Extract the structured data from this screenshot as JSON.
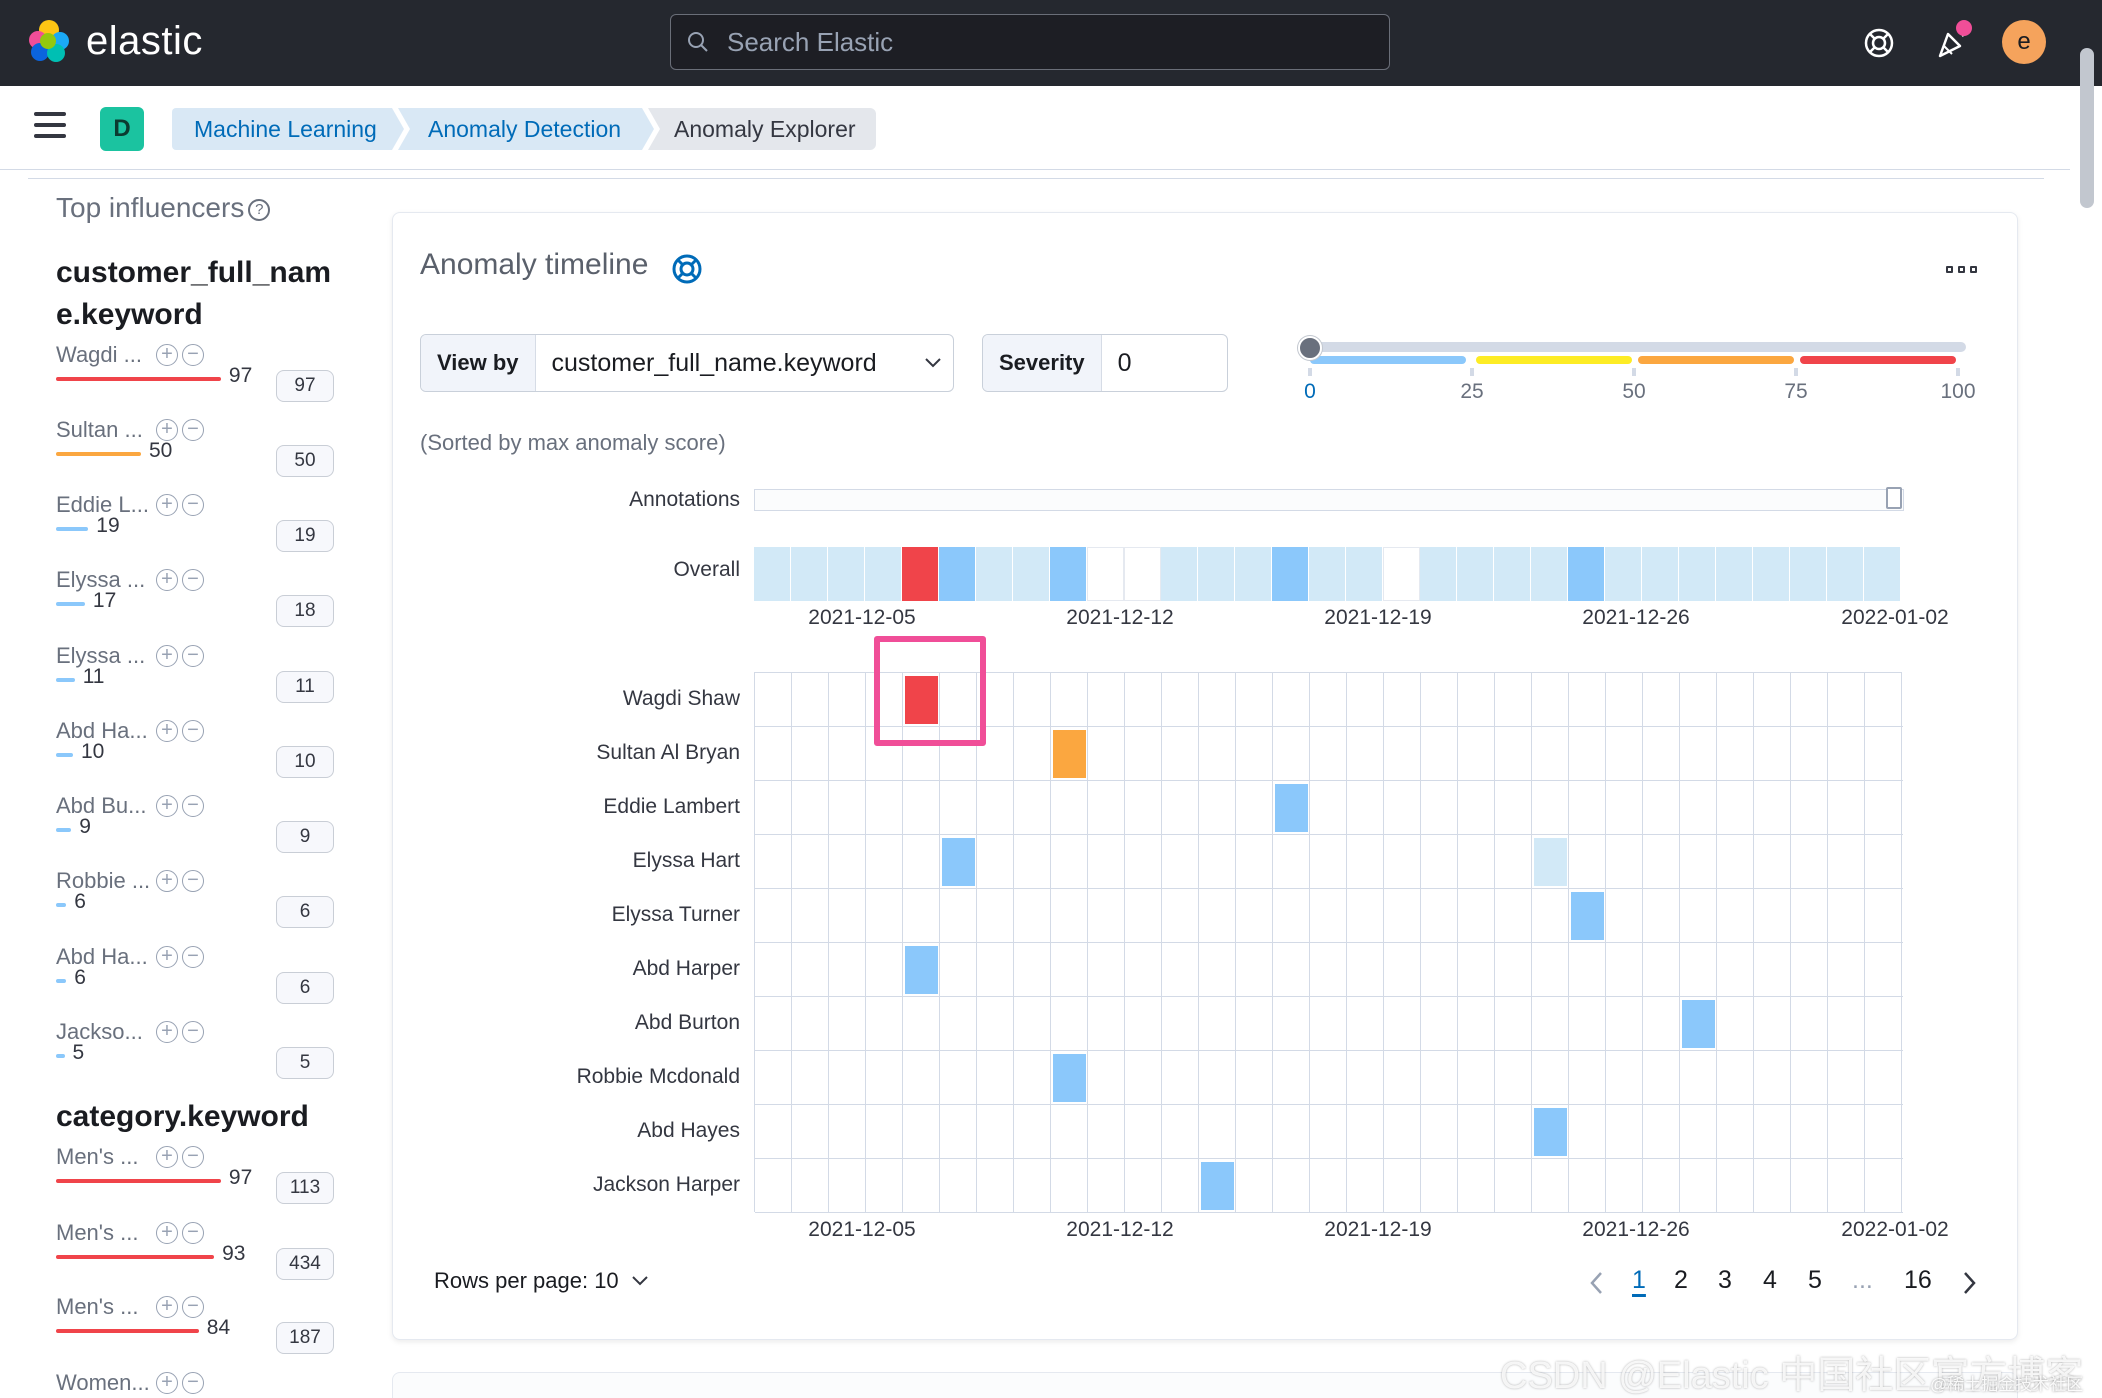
{
  "header": {
    "logo_text": "elastic",
    "search_placeholder": "Search Elastic",
    "avatar_initial": "e"
  },
  "breadcrumbs": {
    "space_badge": "D",
    "items": [
      "Machine Learning",
      "Anomaly Detection",
      "Anomaly Explorer"
    ]
  },
  "influencers": {
    "title": "Top influencers",
    "sections": [
      {
        "field": "customer_full_name.keyword",
        "items": [
          {
            "name": "Wagdi ...",
            "score": "97",
            "count": "97",
            "color": "#f0444a"
          },
          {
            "name": "Sultan ...",
            "score": "50",
            "count": "50",
            "color": "#fba740"
          },
          {
            "name": "Eddie L...",
            "score": "19",
            "count": "19",
            "color": "#8bc8fb"
          },
          {
            "name": "Elyssa ...",
            "score": "17",
            "count": "18",
            "color": "#8bc8fb"
          },
          {
            "name": "Elyssa ...",
            "score": "11",
            "count": "11",
            "color": "#8bc8fb"
          },
          {
            "name": "Abd Ha...",
            "score": "10",
            "count": "10",
            "color": "#8bc8fb"
          },
          {
            "name": "Abd Bu...",
            "score": "9",
            "count": "9",
            "color": "#8bc8fb"
          },
          {
            "name": "Robbie ...",
            "score": "6",
            "count": "6",
            "color": "#8bc8fb"
          },
          {
            "name": "Abd Ha...",
            "score": "6",
            "count": "6",
            "color": "#8bc8fb"
          },
          {
            "name": "Jackso...",
            "score": "5",
            "count": "5",
            "color": "#8bc8fb"
          }
        ]
      },
      {
        "field": "category.keyword",
        "items": [
          {
            "name": "Men's ...",
            "score": "97",
            "count": "113",
            "color": "#f0444a"
          },
          {
            "name": "Men's ...",
            "score": "93",
            "count": "434",
            "color": "#f0444a"
          },
          {
            "name": "Men's ...",
            "score": "84",
            "count": "187",
            "color": "#f0444a"
          },
          {
            "name": "Women...",
            "score": "",
            "count": "",
            "color": "#f0444a"
          }
        ]
      }
    ]
  },
  "timeline": {
    "title": "Anomaly timeline",
    "view_by_label": "View by",
    "view_by_value": "customer_full_name.keyword",
    "severity_label": "Severity",
    "severity_value": "0",
    "severity_scale": {
      "ticks": [
        "0",
        "25",
        "50",
        "75",
        "100"
      ],
      "colors": [
        "#8bc8fb",
        "#fdec25",
        "#fba740",
        "#f0444a"
      ]
    },
    "sorted_note": "(Sorted by max anomaly score)",
    "annotations_label": "Annotations",
    "overall_label": "Overall",
    "x_ticks": [
      "2021-12-05",
      "2021-12-12",
      "2021-12-19",
      "2021-12-26",
      "2022-01-02"
    ],
    "overall_cells": [
      "l",
      "l",
      "l",
      "l",
      "r",
      "b",
      "l",
      "l",
      "b",
      "w",
      "w",
      "l",
      "l",
      "l",
      "b",
      "l",
      "l",
      "w",
      "l",
      "l",
      "l",
      "l",
      "b",
      "l",
      "l",
      "l",
      "l",
      "l",
      "l",
      "l",
      "l"
    ],
    "rows": [
      "Wagdi Shaw",
      "Sultan Al Bryan",
      "Eddie Lambert",
      "Elyssa Hart",
      "Elyssa Turner",
      "Abd Harper",
      "Abd Burton",
      "Robbie Mcdonald",
      "Abd Hayes",
      "Jackson Harper"
    ],
    "cells": [
      {
        "row": 0,
        "col": 4,
        "level": "critical"
      },
      {
        "row": 1,
        "col": 8,
        "level": "major"
      },
      {
        "row": 2,
        "col": 14,
        "level": "warning"
      },
      {
        "row": 3,
        "col": 5,
        "level": "warning"
      },
      {
        "row": 3,
        "col": 21,
        "level": "low"
      },
      {
        "row": 4,
        "col": 22,
        "level": "warning"
      },
      {
        "row": 5,
        "col": 4,
        "level": "warning"
      },
      {
        "row": 6,
        "col": 25,
        "level": "warning"
      },
      {
        "row": 7,
        "col": 8,
        "level": "warning"
      },
      {
        "row": 8,
        "col": 21,
        "level": "warning"
      },
      {
        "row": 9,
        "col": 12,
        "level": "warning"
      }
    ],
    "level_colors": {
      "critical": "#f0444a",
      "major": "#fba740",
      "warning": "#8bc8fb",
      "low": "#d2e9f7"
    }
  },
  "pagination": {
    "rows_per_page": "Rows per page: 10",
    "pages": [
      "1",
      "2",
      "3",
      "4",
      "5",
      "...",
      "16"
    ],
    "active_page": "1"
  },
  "watermark": "CSDN @Elastic 中国社区官方博客",
  "watermark2": "@稀土掘金技术社区"
}
